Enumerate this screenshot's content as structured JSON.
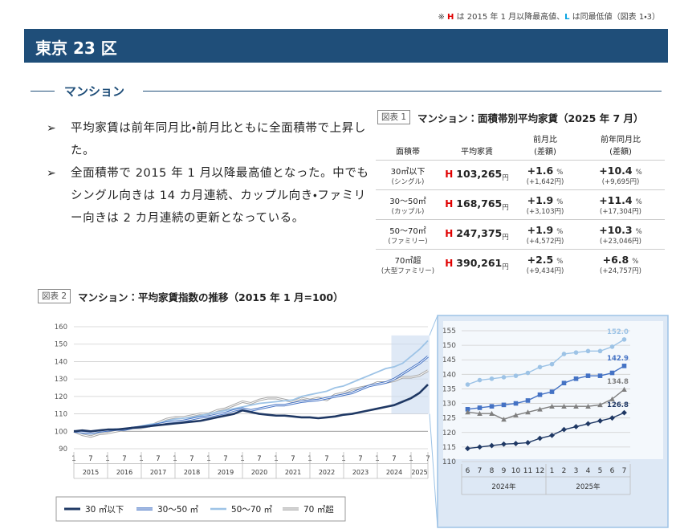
{
  "note": {
    "prefix": "※",
    "h": "H",
    "mid": "は 2015 年 1 月以降最高値、",
    "l": "L",
    "suffix": "は同最低値（図表 1・3）"
  },
  "header": {
    "title": "東京 23 区"
  },
  "section": {
    "title": "マンション"
  },
  "bullets": [
    "平均家賃は前年同月比・前月比ともに全面積帯で上昇した。",
    "全面積帯で 2015 年 1 月以降最高値となった。中でもシングル向きは 14 カ月連続、カップル向き・ファミリー向きは 2 カ月連続の更新となっている。"
  ],
  "table": {
    "label": "図表 1",
    "title": "マンション：面積帯別平均家賃（2025 年 7 月）",
    "columns": [
      {
        "name": "面積帯"
      },
      {
        "name": "平均家賃"
      },
      {
        "name": "前月比",
        "sub": "(差額)"
      },
      {
        "name": "前年同月比",
        "sub": "(差額)"
      }
    ],
    "units": {
      "yen": "円",
      "pct": "%"
    },
    "rows": [
      {
        "area": "30㎡以下",
        "type": "(シングル)",
        "mark": "H",
        "rent": "103,265",
        "mom": "+1.6",
        "mom_diff": "(+1,642円)",
        "yoy": "+10.4",
        "yoy_diff": "(+9,695円)"
      },
      {
        "area": "30～50㎡",
        "type": "(カップル)",
        "mark": "H",
        "rent": "168,765",
        "mom": "+1.9",
        "mom_diff": "(+3,103円)",
        "yoy": "+11.4",
        "yoy_diff": "(+17,304円)"
      },
      {
        "area": "50～70㎡",
        "type": "(ファミリー)",
        "mark": "H",
        "rent": "247,375",
        "mom": "+1.9",
        "mom_diff": "(+4,572円)",
        "yoy": "+10.3",
        "yoy_diff": "(+23,046円)"
      },
      {
        "area": "70㎡超",
        "type": "(大型ファミリー)",
        "mark": "H",
        "rent": "390,261",
        "mom": "+2.5",
        "mom_diff": "(+9,434円)",
        "yoy": "+6.8",
        "yoy_diff": "(+24,757円)"
      }
    ]
  },
  "chart_data": [
    {
      "type": "line",
      "label": "図表 2",
      "title": "マンション：平均家賃指数の推移（2015 年 1 月=100）",
      "categories": [
        "1",
        null,
        "7",
        null,
        "1",
        null,
        "7",
        null,
        "1",
        null,
        "7",
        null,
        "1",
        null,
        "7",
        null,
        "1",
        null,
        "7",
        null,
        "1",
        null,
        "7",
        null,
        "1",
        null,
        "7",
        null,
        "1",
        null,
        "7",
        null,
        "1",
        null,
        "7",
        null,
        "1",
        null,
        "7",
        null,
        "1",
        null,
        "7"
      ],
      "groups": [
        "2015",
        "2016",
        "2017",
        "2018",
        "2019",
        "2020",
        "2021",
        "2022",
        "2023",
        "2024",
        "2025"
      ],
      "ylim": [
        90,
        160
      ],
      "yticks": [
        90,
        100,
        110,
        120,
        130,
        140,
        150,
        160
      ],
      "grid": true,
      "series": [
        {
          "name": "30 ㎡以下",
          "color": "#1f3864",
          "style": "solid",
          "values": [
            100,
            100.5,
            100,
            100.5,
            101,
            101,
            101.5,
            102,
            102.5,
            103,
            103.5,
            104,
            104.5,
            105,
            105.5,
            106,
            107,
            108,
            109,
            110,
            112,
            111,
            110,
            109.5,
            109,
            109,
            108.5,
            108,
            108,
            107.5,
            108,
            108.5,
            109.5,
            110,
            111,
            112,
            113,
            114,
            115,
            117,
            119,
            122,
            126.8
          ]
        },
        {
          "name": "30～50 ㎡",
          "color": "#4472c4",
          "style": "double",
          "values": [
            100,
            99.5,
            99,
            100,
            100.5,
            101,
            101,
            102,
            102.5,
            103,
            104,
            105,
            105.5,
            106,
            107,
            108,
            108.5,
            109.5,
            110.5,
            112,
            113,
            112,
            113,
            114,
            115,
            115,
            116,
            117,
            117.5,
            118,
            119,
            120,
            121,
            122,
            124,
            126,
            127,
            128,
            130,
            133,
            136,
            139,
            142.9
          ]
        },
        {
          "name": "50～70 ㎡",
          "color": "#9dc3e6",
          "style": "solid",
          "values": [
            100,
            99,
            98.5,
            99.5,
            100.5,
            101,
            101.5,
            102,
            103,
            104,
            104.5,
            106,
            107,
            107.5,
            108,
            109,
            110,
            111,
            112,
            113,
            114,
            115,
            116,
            116.5,
            117,
            117.5,
            118,
            120,
            121,
            122,
            123,
            125,
            126,
            128,
            130,
            132,
            134,
            136,
            137,
            139,
            143,
            147,
            152
          ]
        },
        {
          "name": "70 ㎡超",
          "color": "#a6a6a6",
          "style": "double",
          "values": [
            100,
            98,
            97,
            98.5,
            99,
            100,
            101,
            102,
            102,
            103,
            105,
            107,
            108,
            108,
            109,
            110,
            110,
            112,
            113,
            115,
            117,
            116,
            118,
            119,
            119,
            118,
            117,
            119,
            118,
            119,
            118,
            121,
            122,
            124,
            125,
            126,
            128,
            128,
            129,
            131,
            131,
            132,
            134.8
          ]
        }
      ]
    },
    {
      "type": "line",
      "categories": [
        "6",
        "7",
        "8",
        "9",
        "10",
        "11",
        "12",
        "1",
        "2",
        "3",
        "4",
        "5",
        "6",
        "7"
      ],
      "groups": [
        "2024年",
        "2025年"
      ],
      "ylim": [
        110,
        155
      ],
      "yticks": [
        110,
        115,
        120,
        125,
        130,
        135,
        140,
        145,
        150,
        155
      ],
      "grid": true,
      "series": [
        {
          "color": "#9dc3e6",
          "marker": "circle",
          "values": [
            136.5,
            138,
            138.5,
            139,
            139.5,
            140.5,
            142.5,
            143.5,
            147,
            147.5,
            148,
            148,
            149.5,
            152
          ],
          "value_labels": [
            null,
            null,
            null,
            null,
            null,
            null,
            null,
            null,
            null,
            null,
            null,
            null,
            null,
            "152.0"
          ]
        },
        {
          "color": "#4472c4",
          "marker": "square",
          "values": [
            128,
            128.5,
            129,
            129.5,
            130,
            131,
            133,
            134,
            137,
            138.5,
            139.5,
            139.5,
            140.5,
            142.9
          ],
          "value_labels": [
            null,
            null,
            null,
            null,
            null,
            null,
            null,
            null,
            null,
            null,
            null,
            null,
            null,
            "142.9"
          ]
        },
        {
          "color": "#7f7f7f",
          "marker": "triangle",
          "values": [
            127,
            126.5,
            126.5,
            124.5,
            126,
            127,
            128,
            129,
            129,
            129,
            129,
            129.5,
            131.5,
            134.8
          ],
          "value_labels": [
            null,
            null,
            null,
            null,
            null,
            null,
            null,
            null,
            null,
            null,
            null,
            null,
            null,
            "134.8"
          ]
        },
        {
          "color": "#1f3864",
          "marker": "diamond",
          "values": [
            114.5,
            115,
            115.5,
            116,
            116.2,
            116.5,
            118,
            119,
            121,
            122,
            123,
            124,
            125,
            126.8
          ],
          "value_labels": [
            null,
            null,
            null,
            null,
            null,
            null,
            null,
            null,
            null,
            null,
            null,
            null,
            null,
            "126.8"
          ]
        }
      ]
    }
  ]
}
